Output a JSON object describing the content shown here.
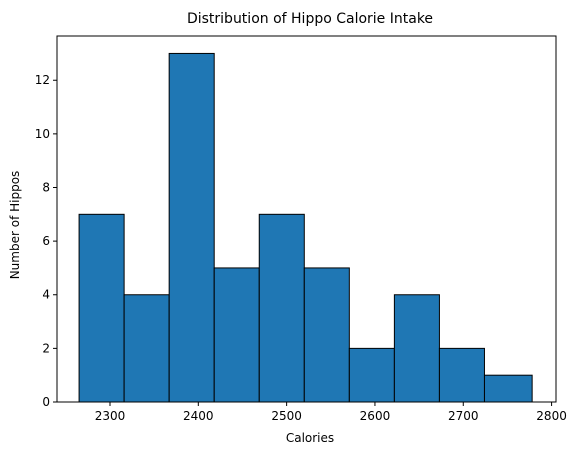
{
  "chart_data": {
    "type": "bar",
    "title": "Distribution of Hippo Calorie Intake",
    "xlabel": "Calories",
    "ylabel": "Number of Hippos",
    "bin_edges": [
      2265,
      2316,
      2367,
      2418,
      2469,
      2520,
      2571,
      2622,
      2673,
      2724,
      2778
    ],
    "values": [
      7,
      4,
      13,
      5,
      7,
      5,
      2,
      4,
      2,
      1
    ],
    "xlim": [
      2240,
      2805
    ],
    "ylim": [
      0,
      13.65
    ],
    "xticks": [
      2300,
      2400,
      2500,
      2600,
      2700,
      2800
    ],
    "xtick_labels": [
      "2300",
      "2400",
      "2500",
      "2600",
      "2700",
      "2800"
    ],
    "yticks": [
      0,
      2,
      4,
      6,
      8,
      10,
      12
    ],
    "ytick_labels": [
      "0",
      "2",
      "4",
      "6",
      "8",
      "10",
      "12"
    ],
    "grid": false,
    "colors": {
      "bar_fill": "#1f77b4",
      "bar_edge": "#000000",
      "axes": "#000000"
    }
  }
}
